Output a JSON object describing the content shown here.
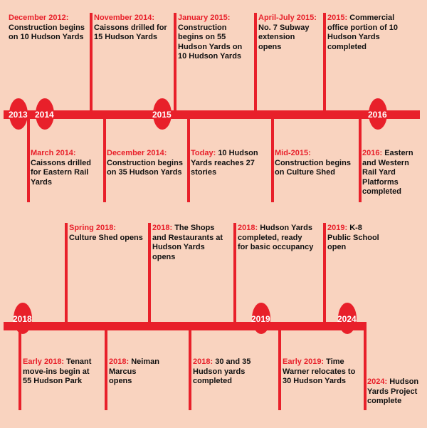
{
  "colors": {
    "background": "#f9d3bf",
    "accent": "#e8202a",
    "text": "#111111"
  },
  "timelines": [
    {
      "years": [
        "2013",
        "2014",
        "2015",
        "2016"
      ],
      "events": [
        {
          "date": "December 2012:",
          "text": "Construction begins on 10 Hudson Yards"
        },
        {
          "date": "March 2014:",
          "text": "Caissons drilled for Eastern Rail Yards"
        },
        {
          "date": "November 2014:",
          "text": "Caissons drilled for 15 Hudson Yards"
        },
        {
          "date": "December 2014:",
          "text": "Construction begins on 35 Hudson Yards"
        },
        {
          "date": "January 2015:",
          "text": "Construction begins on 55 Hudson Yards on 10 Hudson Yards"
        },
        {
          "date": "Today:",
          "text": "10 Hudson Yards reaches 27 stories"
        },
        {
          "date": "April-July 2015:",
          "text": "No. 7 Subway extension opens"
        },
        {
          "date": "Mid-2015:",
          "text": "Construction begins on Culture Shed"
        },
        {
          "date": "2015:",
          "text": "Commercial office portion of 10 Hudson Yards completed"
        },
        {
          "date": "2016:",
          "text": "Eastern and Western Rail Yard Platforms completed"
        }
      ]
    },
    {
      "years": [
        "2018",
        "2019",
        "2024"
      ],
      "events": [
        {
          "date": "Early 2018:",
          "text": "Tenant move-ins begin at 55 Hudson Park"
        },
        {
          "date": "Spring 2018:",
          "text": "Culture Shed opens"
        },
        {
          "date": "2018:",
          "text": "Neiman Marcus opens"
        },
        {
          "date": "2018:",
          "text": "The Shops and Restaurants at Hudson Yards opens"
        },
        {
          "date": "2018:",
          "text": "30 and 35 Hudson yards completed"
        },
        {
          "date": "2018:",
          "text": "Hudson Yards completed, ready for basic occupancy"
        },
        {
          "date": "Early 2019:",
          "text": "Time Warner relocates to 30 Hudson Yards"
        },
        {
          "date": "2019:",
          "text": "K-8 Public School open"
        },
        {
          "date": "2024:",
          "text": "Hudson Yards Project complete"
        }
      ]
    }
  ]
}
